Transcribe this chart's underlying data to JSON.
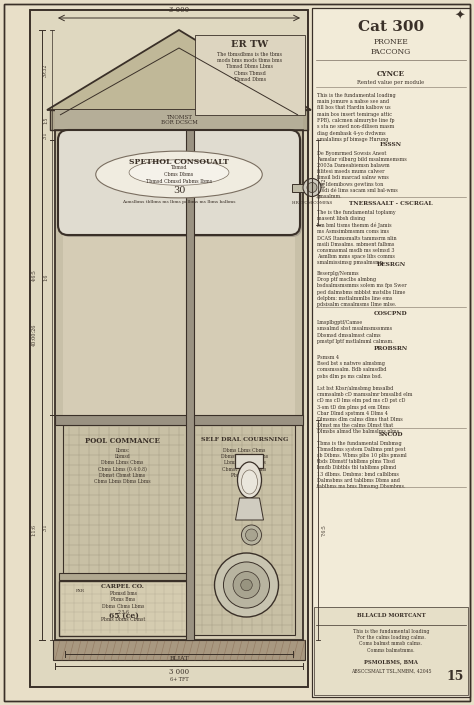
{
  "bg_color": "#e8dfc8",
  "right_panel_bg": "#f2ebd8",
  "draw_bg": "#d8d0b5",
  "title": "Cat 300",
  "subtitle1": "PRONEE",
  "subtitle2": "PACCONG",
  "section_title": "CYNCE",
  "section_sub": "Rented value per module",
  "dim_bottom1": "BLJAT",
  "dim_bottom2": "3 000",
  "dim_bottom3": "6+ TFT",
  "septic_label": "SPETHOL CONSOUALT",
  "room1_label": "POOL COMMANCE",
  "room2_label": "SELF DRAL COURSNING",
  "floor_label": "CARPEL CO.",
  "floor2_label": "65 (ce)",
  "er_tw_label": "ER TW",
  "page_num": "15",
  "dark": "#3a3028",
  "med": "#7a6e60",
  "light": "#b0a890"
}
